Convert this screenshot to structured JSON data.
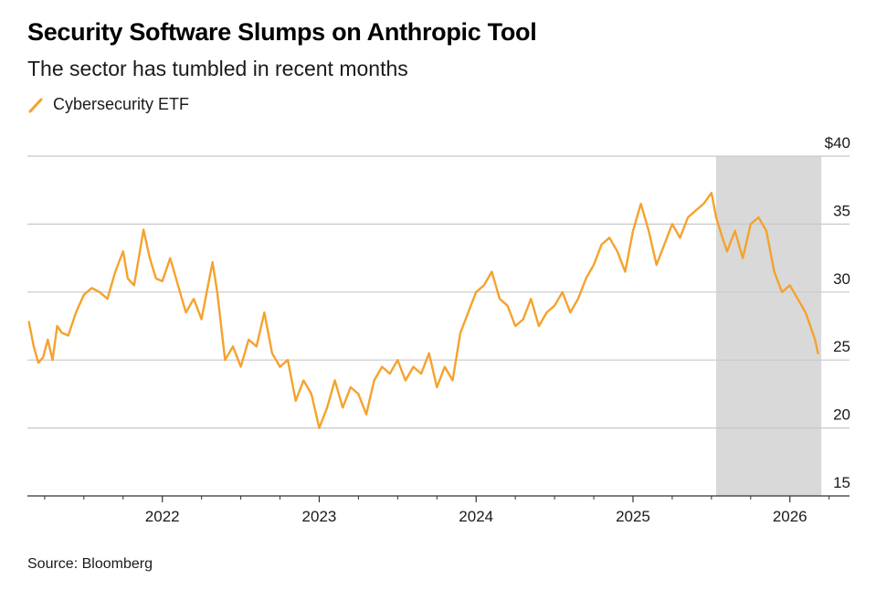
{
  "chart_data": {
    "type": "line",
    "title": "Security Software Slumps on Anthropic Tool",
    "subtitle": "The sector has tumbled in recent months",
    "source": "Source: Bloomberg",
    "legend": [
      {
        "name": "Cybersecurity ETF",
        "color": "#f5a22d"
      }
    ],
    "xlabel": "",
    "ylabel": "",
    "xlim": [
      2021.14,
      2026.38
    ],
    "ylim": [
      15,
      40
    ],
    "y_ticks": [
      {
        "value": 40,
        "label": "$40"
      },
      {
        "value": 35,
        "label": "35"
      },
      {
        "value": 30,
        "label": "30"
      },
      {
        "value": 25,
        "label": "25"
      },
      {
        "value": 20,
        "label": "20"
      },
      {
        "value": 15,
        "label": "15"
      }
    ],
    "x_ticks": [
      {
        "value": 2022,
        "label": "2022"
      },
      {
        "value": 2023,
        "label": "2023"
      },
      {
        "value": 2024,
        "label": "2024"
      },
      {
        "value": 2025,
        "label": "2025"
      },
      {
        "value": 2026,
        "label": "2026"
      }
    ],
    "minor_x_ticks": [
      2021.25,
      2021.5,
      2021.75,
      2022.25,
      2022.5,
      2022.75,
      2023.25,
      2023.5,
      2023.75,
      2024.25,
      2024.5,
      2024.75,
      2025.25,
      2025.5,
      2025.75,
      2026.25
    ],
    "shaded_region": {
      "x_start": 2025.53,
      "x_end": 2026.2,
      "color": "#d9d9d9"
    },
    "series": [
      {
        "name": "Cybersecurity ETF",
        "color": "#f5a22d",
        "x": [
          2021.15,
          2021.18,
          2021.21,
          2021.24,
          2021.27,
          2021.3,
          2021.33,
          2021.36,
          2021.4,
          2021.45,
          2021.5,
          2021.55,
          2021.6,
          2021.65,
          2021.7,
          2021.75,
          2021.78,
          2021.82,
          2021.85,
          2021.88,
          2021.92,
          2021.96,
          2022.0,
          2022.05,
          2022.1,
          2022.15,
          2022.2,
          2022.25,
          2022.3,
          2022.32,
          2022.35,
          2022.4,
          2022.45,
          2022.5,
          2022.55,
          2022.6,
          2022.65,
          2022.7,
          2022.75,
          2022.8,
          2022.85,
          2022.9,
          2022.95,
          2023.0,
          2023.05,
          2023.1,
          2023.15,
          2023.2,
          2023.25,
          2023.3,
          2023.35,
          2023.4,
          2023.45,
          2023.5,
          2023.55,
          2023.6,
          2023.65,
          2023.7,
          2023.75,
          2023.8,
          2023.85,
          2023.9,
          2023.95,
          2024.0,
          2024.05,
          2024.1,
          2024.15,
          2024.2,
          2024.25,
          2024.3,
          2024.35,
          2024.4,
          2024.45,
          2024.5,
          2024.55,
          2024.6,
          2024.65,
          2024.7,
          2024.75,
          2024.8,
          2024.85,
          2024.9,
          2024.95,
          2025.0,
          2025.05,
          2025.1,
          2025.15,
          2025.2,
          2025.25,
          2025.3,
          2025.35,
          2025.4,
          2025.45,
          2025.5,
          2025.53,
          2025.57,
          2025.6,
          2025.65,
          2025.7,
          2025.75,
          2025.8,
          2025.85,
          2025.9,
          2025.95,
          2026.0,
          2026.05,
          2026.1,
          2026.13,
          2026.16,
          2026.18
        ],
        "values": [
          27.8,
          26.0,
          24.8,
          25.2,
          26.5,
          25.0,
          27.5,
          27.0,
          26.8,
          28.5,
          29.8,
          30.3,
          30.0,
          29.5,
          31.5,
          33.0,
          31.0,
          30.5,
          32.5,
          34.6,
          32.5,
          31.0,
          30.8,
          32.5,
          30.5,
          28.5,
          29.5,
          28.0,
          31.0,
          32.2,
          30.0,
          25.0,
          26.0,
          24.5,
          26.5,
          26.0,
          28.5,
          25.5,
          24.5,
          25.0,
          22.0,
          23.5,
          22.5,
          20.0,
          21.5,
          23.5,
          21.5,
          23.0,
          22.5,
          21.0,
          23.5,
          24.5,
          24.0,
          25.0,
          23.5,
          24.5,
          24.0,
          25.5,
          23.0,
          24.5,
          23.5,
          27.0,
          28.5,
          30.0,
          30.5,
          31.5,
          29.5,
          29.0,
          27.5,
          28.0,
          29.5,
          27.5,
          28.5,
          29.0,
          30.0,
          28.5,
          29.5,
          31.0,
          32.0,
          33.5,
          34.0,
          33.0,
          31.5,
          34.5,
          36.5,
          34.5,
          32.0,
          33.5,
          35.0,
          34.0,
          35.5,
          36.0,
          36.5,
          37.3,
          35.5,
          34.0,
          33.0,
          34.5,
          32.5,
          35.0,
          35.5,
          34.5,
          31.5,
          30.0,
          30.5,
          29.5,
          28.5,
          27.5,
          26.5,
          25.5
        ]
      }
    ]
  }
}
